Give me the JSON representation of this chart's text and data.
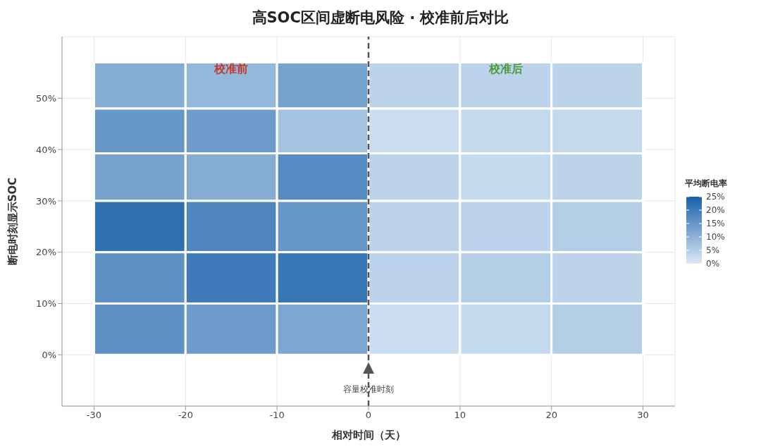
{
  "chart_data": {
    "type": "heatmap",
    "title": "高SOC区间虚断电风险 · 校准前后对比",
    "xlabel": "相对时间（天）",
    "ylabel": "断电时刻显示SOC",
    "clabel": "平均断电率",
    "x": [
      -25,
      -15,
      -5,
      5,
      15,
      25
    ],
    "y": [
      52.5,
      43.5,
      35,
      25,
      15,
      5
    ],
    "cells": [
      [
        11,
        9,
        13,
        4,
        4,
        4
      ],
      [
        15,
        14,
        7,
        2,
        3,
        3
      ],
      [
        13,
        11,
        17,
        4,
        3,
        4
      ],
      [
        22,
        18,
        15,
        4,
        4,
        5
      ],
      [
        16,
        20,
        21,
        4,
        5,
        4
      ],
      [
        16,
        14,
        12,
        2,
        3,
        5
      ]
    ],
    "xlim": [
      -33.5,
      33.5
    ],
    "xticks": [
      -30,
      -20,
      -10,
      0,
      10,
      20,
      30
    ],
    "ylim": [
      -10,
      62
    ],
    "yticks": [
      {
        "value": 0,
        "label": "0%"
      },
      {
        "value": 10,
        "label": "10%"
      },
      {
        "value": 20,
        "label": "20%"
      },
      {
        "value": 30,
        "label": "30%"
      },
      {
        "value": 40,
        "label": "40%"
      },
      {
        "value": 50,
        "label": "50%"
      }
    ],
    "clim": [
      0,
      25
    ],
    "cticks": [
      {
        "value": 0,
        "label": "0%"
      },
      {
        "value": 5,
        "label": "5%"
      },
      {
        "value": 10,
        "label": "10%"
      },
      {
        "value": 15,
        "label": "15%"
      },
      {
        "value": 20,
        "label": "20%"
      },
      {
        "value": 25,
        "label": "25%"
      }
    ],
    "grid": true,
    "ref_lines": [
      {
        "axis": "x",
        "value": 0,
        "label": "容量校准时刻",
        "color": "#555555",
        "line_style": "dashed"
      }
    ],
    "annotations": [
      "校准前",
      "校准后"
    ]
  }
}
